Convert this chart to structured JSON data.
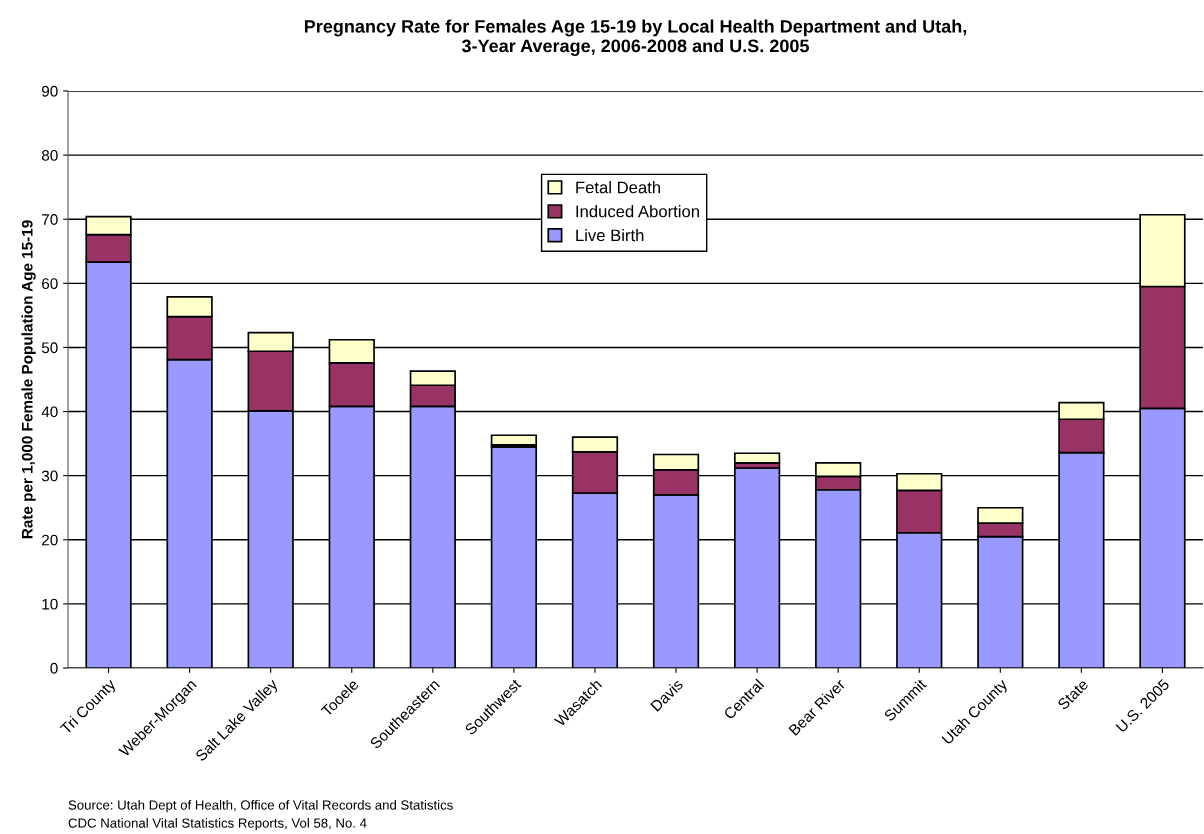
{
  "chart_data": {
    "type": "bar",
    "stacked": true,
    "title": "Pregnancy Rate for Females Age 15-19 by Local Health Department and Utah,\n3-Year Average, 2006-2008 and U.S. 2005",
    "ylabel": "Rate per 1,000 Female Population Age 15-19",
    "categories": [
      "Tri County",
      "Weber-Morgan",
      "Salt Lake Valley",
      "Tooele",
      "Southeastern",
      "Southwest",
      "Wasatch",
      "Davis",
      "Central",
      "Bear River",
      "Summit",
      "Utah County",
      "State",
      "U.S. 2005"
    ],
    "series": [
      {
        "name": "Live Birth",
        "color": "#9999ff",
        "values": [
          63.3,
          48.1,
          40.1,
          40.8,
          40.8,
          34.5,
          27.3,
          27.0,
          31.2,
          27.8,
          21.1,
          20.5,
          33.6,
          40.5
        ]
      },
      {
        "name": "Induced Abortion",
        "color": "#993366",
        "values": [
          4.3,
          6.7,
          9.3,
          6.8,
          3.3,
          0.3,
          6.4,
          3.9,
          0.8,
          2.1,
          6.6,
          2.1,
          5.2,
          19.0
        ]
      },
      {
        "name": "Fetal Death",
        "color": "#ffffcc",
        "values": [
          2.8,
          3.1,
          2.9,
          3.6,
          2.2,
          1.5,
          2.3,
          2.4,
          1.5,
          2.1,
          2.6,
          2.4,
          2.6,
          11.2
        ]
      }
    ],
    "ylim": [
      0,
      90
    ],
    "yticks": [
      0,
      10,
      20,
      30,
      40,
      50,
      60,
      70,
      80,
      90
    ],
    "grid": "y",
    "legend": "top",
    "annotations": [
      "Source: Utah Dept of Health, Office of Vital Records and Statistics\nCDC National Vital Statistics Reports, Vol 58, No. 4"
    ]
  }
}
